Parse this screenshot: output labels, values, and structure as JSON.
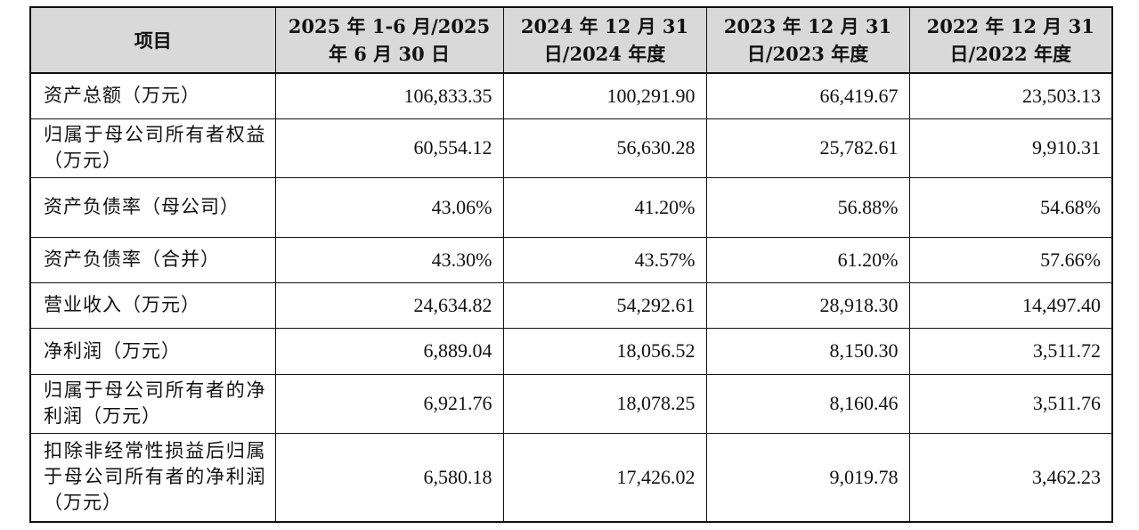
{
  "table": {
    "headers": [
      "项目",
      "2025 年 1-6 月/2025 年 6 月 30 日",
      "2024 年 12 月 31 日/2024 年度",
      "2023 年 12 月 31 日/2023 年度",
      "2022 年 12 月 31 日/2022 年度"
    ],
    "rows": [
      {
        "label": "资产总额（万元）",
        "values": [
          "106,833.35",
          "100,291.90",
          "66,419.67",
          "23,503.13"
        ]
      },
      {
        "label": "归属于母公司所有者权益（万元）",
        "values": [
          "60,554.12",
          "56,630.28",
          "25,782.61",
          "9,910.31"
        ]
      },
      {
        "label": "资产负债率（母公司）",
        "values": [
          "43.06%",
          "41.20%",
          "56.88%",
          "54.68%"
        ]
      },
      {
        "label": "资产负债率（合并）",
        "values": [
          "43.30%",
          "43.57%",
          "61.20%",
          "57.66%"
        ]
      },
      {
        "label": "营业收入（万元）",
        "values": [
          "24,634.82",
          "54,292.61",
          "28,918.30",
          "14,497.40"
        ]
      },
      {
        "label": "净利润（万元）",
        "values": [
          "6,889.04",
          "18,056.52",
          "8,150.30",
          "3,511.72"
        ]
      },
      {
        "label": "归属于母公司所有者的净利润（万元）",
        "values": [
          "6,921.76",
          "18,078.25",
          "8,160.46",
          "3,511.76"
        ]
      },
      {
        "label": "扣除非经常性损益后归属于母公司所有者的净利润（万元）",
        "values": [
          "6,580.18",
          "17,426.02",
          "9,019.78",
          "3,462.23"
        ]
      }
    ]
  }
}
